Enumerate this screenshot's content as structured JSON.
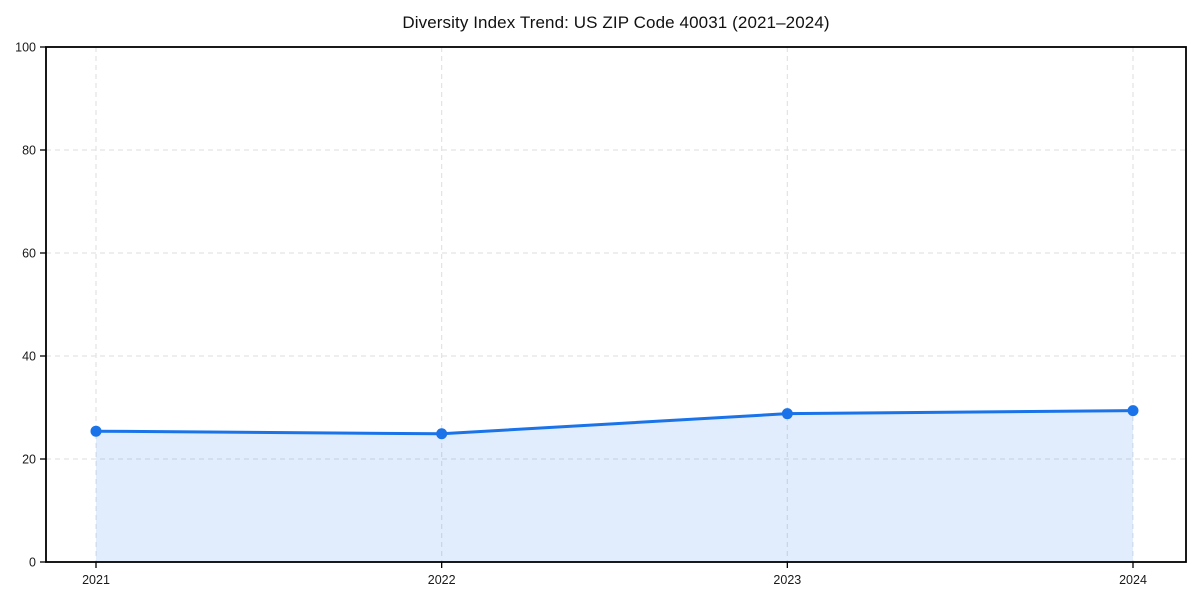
{
  "chart": {
    "title": "Diversity Index Trend: US ZIP Code 40031 (2021–2024)"
  },
  "chart_data": {
    "type": "area",
    "title": "Diversity Index Trend: US ZIP Code 40031 (2021–2024)",
    "x": [
      2021,
      2022,
      2023,
      2024
    ],
    "xticklabels": [
      "2021",
      "2022",
      "2023",
      "2024"
    ],
    "series": [
      {
        "name": "Diversity Index",
        "values": [
          25.4,
          24.9,
          28.8,
          29.4
        ]
      }
    ],
    "xlabel": "",
    "ylabel": "",
    "ylim": [
      0,
      100
    ],
    "yticks": [
      0,
      20,
      40,
      60,
      80,
      100
    ],
    "grid": "dashed-both-axes",
    "legend": "none",
    "marker": "circle",
    "colors": {
      "line": "#1a73e8",
      "marker": "#1a73e8",
      "area_fill": "rgba(26,115,232,0.13)",
      "gridline": "#e3e3e3",
      "spine": "#000000",
      "tick_text": "#1a1a1a",
      "title_text": "#111111",
      "background": "#ffffff"
    }
  }
}
